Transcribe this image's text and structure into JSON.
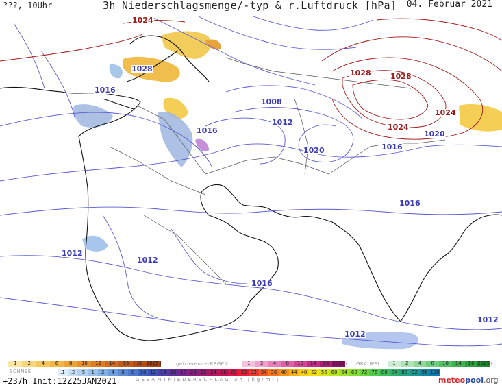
{
  "header": {
    "left": "???, 10Uhr",
    "title": "3h Niederschlagsmenge/-typ & r.Luftdruck [hPa]",
    "date": "04. Februar 2021"
  },
  "isobar_labels": [
    {
      "text": "1024",
      "color": "r"
    },
    {
      "text": "1028",
      "color": "b"
    },
    {
      "text": "1016",
      "color": "b"
    },
    {
      "text": "1008",
      "color": "b"
    },
    {
      "text": "1012",
      "color": "b"
    },
    {
      "text": "1016",
      "color": "b"
    },
    {
      "text": "1020",
      "color": "b"
    },
    {
      "text": "1028",
      "color": "r"
    },
    {
      "text": "1028",
      "color": "r"
    },
    {
      "text": "1024",
      "color": "r"
    },
    {
      "text": "1024",
      "color": "r"
    },
    {
      "text": "1020",
      "color": "b"
    },
    {
      "text": "1016",
      "color": "b"
    },
    {
      "text": "1016",
      "color": "b"
    },
    {
      "text": "1012",
      "color": "b"
    },
    {
      "text": "1012",
      "color": "b"
    },
    {
      "text": "1016",
      "color": "b"
    },
    {
      "text": "1012",
      "color": "b"
    },
    {
      "text": "1012",
      "color": "b"
    }
  ],
  "legend": {
    "schnee_label": "SCHNEE",
    "schnee_values": [
      "1",
      "2",
      "4",
      "6",
      "8",
      "10",
      "12",
      "14",
      "16",
      "18",
      "2025+"
    ],
    "regen_label": "gefrierenderREGEN",
    "regen_values": [
      "1",
      "2",
      "4",
      "8",
      "10",
      "14",
      "16",
      "2025+"
    ],
    "graupel_label": "GRAUPEL",
    "graupel_values": [
      "1",
      "2",
      "4",
      "8",
      "10",
      "14",
      "16",
      "2025+"
    ],
    "total_values": [
      ".1",
      ".2",
      ".5",
      "1",
      "2",
      "4",
      "6",
      "8",
      "10",
      "12",
      "14",
      "16",
      "18",
      "20",
      "22",
      "24",
      "26",
      "28",
      "30",
      "32",
      "34",
      "36",
      "40",
      "44",
      "48",
      "52",
      "56",
      "60",
      "64",
      "68",
      "72",
      "76",
      "80",
      "84",
      "88",
      "92",
      "96",
      "100"
    ],
    "gesamt_label": "GESAMTNIEDERSCHLAG 3h [kg/m²]"
  },
  "footer": {
    "forecast": "+237h Init:12Z25JAN2021",
    "logo_a": "meteo",
    "logo_b": "pool",
    "logo_c": ".org"
  },
  "colors": {
    "isobar_low": "#5a5ad0",
    "isobar_high": "#a01818",
    "coast": "#111111"
  }
}
